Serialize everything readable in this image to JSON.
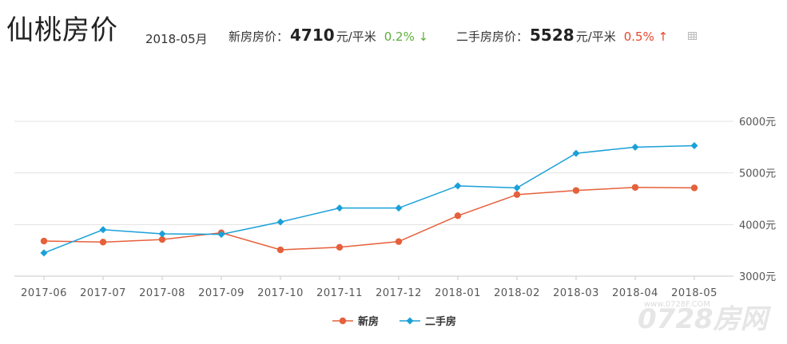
{
  "header": {
    "city_title": "仙桃房价",
    "month": "2018-05月",
    "new_house": {
      "label": "新房房价：",
      "price": "4710",
      "unit": "元/平米",
      "change": "0.2%",
      "arrow": "↓"
    },
    "second_hand": {
      "label": "二手房房价：",
      "price": "5528",
      "unit": "元/平米",
      "change": "0.5%",
      "arrow": "↑"
    },
    "table_icon": "table-icon"
  },
  "watermark": {
    "url": "www.0728F.COM",
    "brand": "0728房网"
  },
  "chart_data": {
    "type": "line",
    "categories": [
      "2017-06",
      "2017-07",
      "2017-08",
      "2017-09",
      "2017-10",
      "2017-11",
      "2017-12",
      "2018-01",
      "2018-02",
      "2018-03",
      "2018-04",
      "2018-05"
    ],
    "series": [
      {
        "name": "新房",
        "color": "#e5603b",
        "marker": "circle",
        "values": [
          3680,
          3660,
          3710,
          3840,
          3510,
          3560,
          3670,
          4170,
          4580,
          4660,
          4720,
          4710
        ]
      },
      {
        "name": "二手房",
        "color": "#1aa0d8",
        "marker": "diamond",
        "values": [
          3450,
          3900,
          3820,
          3810,
          4050,
          4320,
          4320,
          4750,
          4710,
          5380,
          5500,
          5528
        ]
      }
    ],
    "y_ticks": [
      "3000元",
      "4000元",
      "5000元",
      "6000元"
    ],
    "ylim": [
      3000,
      6000
    ],
    "y_tick_values": [
      3000,
      4000,
      5000,
      6000
    ],
    "grid": true,
    "legend_position": "bottom-center"
  }
}
